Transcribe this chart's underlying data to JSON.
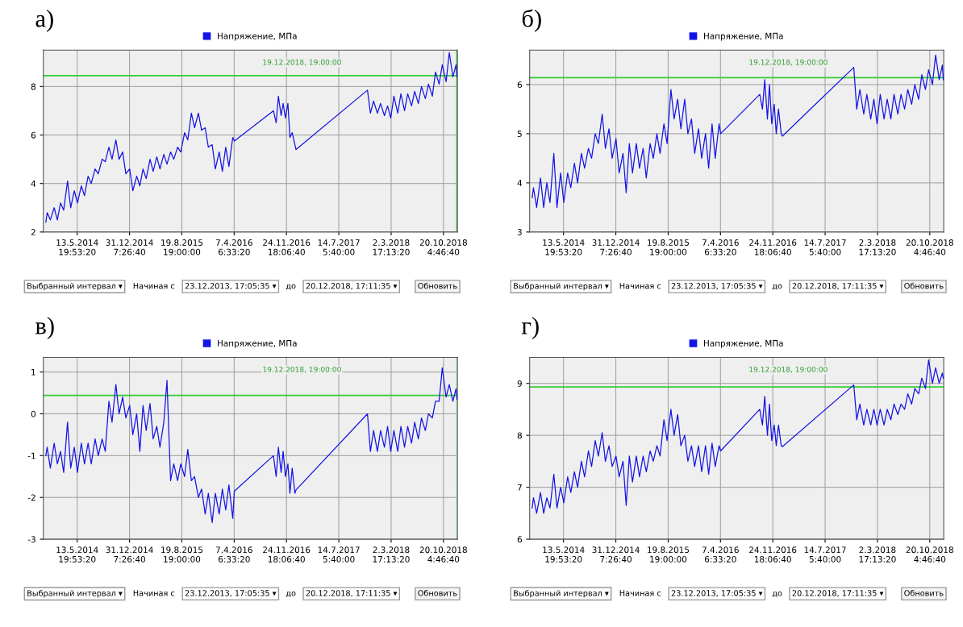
{
  "chart_data": [
    {
      "type": "line",
      "title": "а)",
      "x": [
        "2013-12-26",
        "2014-01-01",
        "2014-01-15",
        "2014-02-01",
        "2014-02-15",
        "2014-03-01",
        "2014-03-15",
        "2014-04-01",
        "2014-04-15",
        "2014-05-01",
        "2014-05-15",
        "2014-06-01",
        "2014-06-15",
        "2014-07-01",
        "2014-07-15",
        "2014-08-01",
        "2014-08-15",
        "2014-09-01",
        "2014-09-15",
        "2014-10-01",
        "2014-10-15",
        "2014-11-01",
        "2014-11-15",
        "2014-12-01",
        "2014-12-15",
        "2015-01-01",
        "2015-01-15",
        "2015-02-01",
        "2015-02-15",
        "2015-03-01",
        "2015-03-15",
        "2015-04-01",
        "2015-04-15",
        "2015-05-01",
        "2015-05-15",
        "2015-06-01",
        "2015-06-15",
        "2015-07-01",
        "2015-07-15",
        "2015-08-01",
        "2015-08-15",
        "2015-09-01",
        "2015-09-15",
        "2015-10-01",
        "2015-10-15",
        "2015-11-01",
        "2015-11-15",
        "2015-12-01",
        "2015-12-15",
        "2016-01-01",
        "2016-01-15",
        "2016-02-01",
        "2016-02-15",
        "2016-03-01",
        "2016-03-15",
        "2016-04-01",
        "2016-04-08",
        "2016-09-28",
        "2016-10-10",
        "2016-10-20",
        "2016-11-01",
        "2016-11-10",
        "2016-11-20",
        "2016-12-01",
        "2016-12-10",
        "2016-12-20",
        "2017-01-01",
        "2017-01-06",
        "2017-11-18",
        "2017-12-01",
        "2017-12-15",
        "2018-01-01",
        "2018-01-15",
        "2018-02-01",
        "2018-02-15",
        "2018-03-01",
        "2018-03-15",
        "2018-04-01",
        "2018-04-15",
        "2018-05-01",
        "2018-05-15",
        "2018-06-01",
        "2018-06-15",
        "2018-07-01",
        "2018-07-15",
        "2018-08-01",
        "2018-08-15",
        "2018-09-01",
        "2018-09-15",
        "2018-10-01",
        "2018-10-15",
        "2018-11-01",
        "2018-11-15",
        "2018-12-01",
        "2018-12-15",
        "2018-12-19"
      ],
      "series": [
        {
          "name": "Напряжение, МПа",
          "color": "#1414e6",
          "values": [
            2.4,
            2.8,
            2.5,
            3.0,
            2.5,
            3.2,
            2.9,
            4.1,
            3.0,
            3.7,
            3.2,
            3.9,
            3.5,
            4.3,
            4.0,
            4.6,
            4.4,
            5.0,
            4.9,
            5.5,
            5.0,
            5.8,
            5.0,
            5.3,
            4.4,
            4.6,
            3.7,
            4.3,
            3.9,
            4.6,
            4.2,
            5.0,
            4.5,
            5.1,
            4.6,
            5.2,
            4.8,
            5.3,
            5.0,
            5.5,
            5.3,
            6.1,
            5.8,
            6.9,
            6.3,
            6.9,
            6.2,
            6.3,
            5.5,
            5.6,
            4.6,
            5.3,
            4.5,
            5.5,
            4.7,
            5.9,
            5.75,
            7.0,
            6.5,
            7.6,
            6.8,
            7.3,
            6.7,
            7.3,
            5.9,
            6.1,
            5.6,
            5.4,
            7.85,
            6.9,
            7.4,
            6.9,
            7.3,
            6.8,
            7.2,
            6.7,
            7.6,
            6.9,
            7.7,
            7.0,
            7.7,
            7.2,
            7.8,
            7.3,
            8.0,
            7.5,
            8.1,
            7.6,
            8.6,
            8.1,
            8.9,
            8.2,
            9.4,
            8.4,
            8.9,
            8.4
          ]
        }
      ],
      "xlim": [
        "2013-12-15",
        "2018-12-21"
      ],
      "ylim": [
        2,
        9.5
      ],
      "yticks": [
        2,
        4,
        6,
        8
      ],
      "xticks": [
        {
          "value": "2014-05-13T19:53:20",
          "label": "13.5.2014\n19:53:20"
        },
        {
          "value": "2014-12-31T07:26:40",
          "label": "31.12.2014\n7:26:40"
        },
        {
          "value": "2015-08-19T19:00:00",
          "label": "19.8.2015\n19:00:00"
        },
        {
          "value": "2016-04-07T06:33:20",
          "label": "7.4.2016\n6:33:20"
        },
        {
          "value": "2016-11-24T18:06:40",
          "label": "24.11.2016\n18:06:40"
        },
        {
          "value": "2017-07-14T05:40:00",
          "label": "14.7.2017\n5:40:00"
        },
        {
          "value": "2018-03-02T17:13:20",
          "label": "2.3.2018\n17:13:20"
        },
        {
          "value": "2018-10-20T04:46:40",
          "label": "20.10.2018\n4:46:40"
        }
      ],
      "ref_lines": [
        {
          "axis": "y",
          "value": 8.45,
          "color": "#33cc33"
        },
        {
          "axis": "x",
          "value": "2018-12-19",
          "color": "#33cc33"
        }
      ],
      "annotations": [
        "19.12.2018, 19:00:00",
        "Выбранный интервал ▾",
        "Начиная с",
        "23.12.2013, 17:05:35 ▾",
        "до",
        "20.12.2018, 17:11:35 ▾",
        "Обновить"
      ],
      "grid": true,
      "legend": "top",
      "line_style": "solid",
      "marker": "none"
    },
    {
      "type": "line",
      "title": "б)",
      "x": [
        "2013-12-26",
        "2014-01-01",
        "2014-01-15",
        "2014-02-01",
        "2014-02-15",
        "2014-03-01",
        "2014-03-15",
        "2014-04-01",
        "2014-04-15",
        "2014-05-01",
        "2014-05-15",
        "2014-06-01",
        "2014-06-15",
        "2014-07-01",
        "2014-07-15",
        "2014-08-01",
        "2014-08-15",
        "2014-09-01",
        "2014-09-15",
        "2014-10-01",
        "2014-10-15",
        "2014-11-01",
        "2014-11-15",
        "2014-12-01",
        "2014-12-15",
        "2015-01-01",
        "2015-01-15",
        "2015-02-01",
        "2015-02-15",
        "2015-03-01",
        "2015-03-15",
        "2015-04-01",
        "2015-04-15",
        "2015-05-01",
        "2015-05-15",
        "2015-06-01",
        "2015-06-15",
        "2015-07-01",
        "2015-07-15",
        "2015-08-01",
        "2015-08-15",
        "2015-09-01",
        "2015-09-15",
        "2015-10-01",
        "2015-10-15",
        "2015-11-01",
        "2015-11-15",
        "2015-12-01",
        "2015-12-15",
        "2016-01-01",
        "2016-01-15",
        "2016-02-01",
        "2016-02-15",
        "2016-03-01",
        "2016-03-15",
        "2016-04-01",
        "2016-04-08",
        "2016-09-28",
        "2016-10-10",
        "2016-10-20",
        "2016-11-01",
        "2016-11-10",
        "2016-11-20",
        "2016-12-01",
        "2016-12-10",
        "2016-12-20",
        "2017-01-01",
        "2017-01-06",
        "2017-11-18",
        "2017-12-01",
        "2017-12-15",
        "2018-01-01",
        "2018-01-15",
        "2018-02-01",
        "2018-02-15",
        "2018-03-01",
        "2018-03-15",
        "2018-04-01",
        "2018-04-15",
        "2018-05-01",
        "2018-05-15",
        "2018-06-01",
        "2018-06-15",
        "2018-07-01",
        "2018-07-15",
        "2018-08-01",
        "2018-08-15",
        "2018-09-01",
        "2018-09-15",
        "2018-10-01",
        "2018-10-15",
        "2018-11-01",
        "2018-11-15",
        "2018-12-01",
        "2018-12-15",
        "2018-12-19"
      ],
      "series": [
        {
          "name": "Напряжение, МПа",
          "color": "#1414e6",
          "values": [
            3.7,
            3.9,
            3.5,
            4.1,
            3.5,
            4.0,
            3.6,
            4.6,
            3.5,
            4.2,
            3.6,
            4.2,
            3.9,
            4.4,
            4.0,
            4.6,
            4.3,
            4.7,
            4.5,
            5.0,
            4.8,
            5.4,
            4.7,
            5.1,
            4.5,
            4.9,
            4.2,
            4.6,
            3.8,
            4.8,
            4.2,
            4.8,
            4.3,
            4.7,
            4.1,
            4.8,
            4.5,
            5.0,
            4.6,
            5.2,
            4.8,
            5.9,
            5.3,
            5.7,
            5.1,
            5.7,
            5.0,
            5.3,
            4.6,
            5.1,
            4.5,
            5.0,
            4.3,
            5.2,
            4.5,
            5.2,
            5.0,
            5.8,
            5.5,
            6.1,
            5.3,
            6.0,
            5.2,
            5.6,
            5.0,
            5.5,
            5.0,
            4.95,
            6.35,
            5.5,
            5.9,
            5.4,
            5.8,
            5.3,
            5.7,
            5.2,
            5.8,
            5.3,
            5.7,
            5.3,
            5.8,
            5.4,
            5.8,
            5.5,
            5.9,
            5.6,
            6.0,
            5.7,
            6.2,
            5.9,
            6.3,
            6.0,
            6.6,
            6.1,
            6.4,
            6.1
          ]
        }
      ],
      "xlim": [
        "2013-12-15",
        "2018-12-21"
      ],
      "ylim": [
        3,
        6.7
      ],
      "yticks": [
        3,
        4,
        5,
        6
      ],
      "xticks": [
        {
          "value": "2014-05-13T19:53:20",
          "label": "13.5.2014\n19:53:20"
        },
        {
          "value": "2014-12-31T07:26:40",
          "label": "31.12.2014\n7:26:40"
        },
        {
          "value": "2015-08-19T19:00:00",
          "label": "19.8.2015\n19:00:00"
        },
        {
          "value": "2016-04-07T06:33:20",
          "label": "7.4.2016\n6:33:20"
        },
        {
          "value": "2016-11-24T18:06:40",
          "label": "24.11.2016\n18:06:40"
        },
        {
          "value": "2017-07-14T05:40:00",
          "label": "14.7.2017\n5:40:00"
        },
        {
          "value": "2018-03-02T17:13:20",
          "label": "2.3.2018\n17:13:20"
        },
        {
          "value": "2018-10-20T04:46:40",
          "label": "20.10.2018\n4:46:40"
        }
      ],
      "ref_lines": [
        {
          "axis": "y",
          "value": 6.14,
          "color": "#33cc33"
        }
      ],
      "annotations": [
        "19.12.2018, 19:00:00",
        "Выбранный интервал ▾",
        "Начиная с",
        "23.12.2013, 17:05:35 ▾",
        "до",
        "20.12.2018, 17:11:35 ▾",
        "Обновить"
      ],
      "grid": true,
      "legend": "top",
      "line_style": "solid",
      "marker": "none"
    },
    {
      "type": "line",
      "title": "в)",
      "x": [
        "2013-12-26",
        "2014-01-01",
        "2014-01-15",
        "2014-02-01",
        "2014-02-15",
        "2014-03-01",
        "2014-03-15",
        "2014-04-01",
        "2014-04-15",
        "2014-05-01",
        "2014-05-15",
        "2014-06-01",
        "2014-06-15",
        "2014-07-01",
        "2014-07-15",
        "2014-08-01",
        "2014-08-15",
        "2014-09-01",
        "2014-09-15",
        "2014-10-01",
        "2014-10-15",
        "2014-11-01",
        "2014-11-15",
        "2014-12-01",
        "2014-12-15",
        "2015-01-01",
        "2015-01-15",
        "2015-02-01",
        "2015-02-15",
        "2015-03-01",
        "2015-03-15",
        "2015-04-01",
        "2015-04-15",
        "2015-05-01",
        "2015-05-15",
        "2015-06-01",
        "2015-06-15",
        "2015-07-01",
        "2015-07-15",
        "2015-08-01",
        "2015-08-15",
        "2015-09-01",
        "2015-09-15",
        "2015-10-01",
        "2015-10-15",
        "2015-11-01",
        "2015-11-15",
        "2015-12-01",
        "2015-12-15",
        "2016-01-01",
        "2016-01-15",
        "2016-02-01",
        "2016-02-15",
        "2016-03-01",
        "2016-03-15",
        "2016-04-01",
        "2016-04-08",
        "2016-09-28",
        "2016-10-10",
        "2016-10-20",
        "2016-11-01",
        "2016-11-10",
        "2016-11-20",
        "2016-12-01",
        "2016-12-10",
        "2016-12-20",
        "2017-01-01",
        "2017-01-06",
        "2017-11-18",
        "2017-12-01",
        "2017-12-15",
        "2018-01-01",
        "2018-01-15",
        "2018-02-01",
        "2018-02-15",
        "2018-03-01",
        "2018-03-15",
        "2018-04-01",
        "2018-04-15",
        "2018-05-01",
        "2018-05-15",
        "2018-06-01",
        "2018-06-15",
        "2018-07-01",
        "2018-07-15",
        "2018-08-01",
        "2018-08-15",
        "2018-09-01",
        "2018-09-15",
        "2018-10-01",
        "2018-10-15",
        "2018-11-01",
        "2018-11-15",
        "2018-12-01",
        "2018-12-15",
        "2018-12-19"
      ],
      "series": [
        {
          "name": "Напряжение, МПа",
          "color": "#1414e6",
          "values": [
            -1.0,
            -0.8,
            -1.3,
            -0.7,
            -1.2,
            -0.9,
            -1.4,
            -0.2,
            -1.3,
            -0.8,
            -1.4,
            -0.7,
            -1.2,
            -0.7,
            -1.2,
            -0.6,
            -1.0,
            -0.6,
            -0.9,
            0.3,
            -0.2,
            0.7,
            0.0,
            0.4,
            -0.1,
            0.2,
            -0.5,
            0.0,
            -0.9,
            0.2,
            -0.4,
            0.25,
            -0.6,
            -0.3,
            -0.8,
            -0.2,
            0.8,
            -1.6,
            -1.2,
            -1.6,
            -1.2,
            -1.5,
            -0.85,
            -1.6,
            -1.5,
            -2.0,
            -1.8,
            -2.4,
            -1.9,
            -2.6,
            -1.9,
            -2.4,
            -1.8,
            -2.3,
            -1.7,
            -2.5,
            -1.85,
            -1.0,
            -1.5,
            -0.8,
            -1.4,
            -0.9,
            -1.5,
            -1.2,
            -1.9,
            -1.3,
            -1.9,
            -1.82,
            0.0,
            -0.9,
            -0.4,
            -0.9,
            -0.4,
            -0.8,
            -0.3,
            -0.9,
            -0.4,
            -0.9,
            -0.3,
            -0.8,
            -0.3,
            -0.7,
            -0.2,
            -0.6,
            -0.1,
            -0.4,
            0.0,
            -0.1,
            0.3,
            0.3,
            1.1,
            0.4,
            0.7,
            0.3,
            0.6,
            0.35
          ]
        }
      ],
      "xlim": [
        "2013-12-15",
        "2018-12-21"
      ],
      "ylim": [
        -3,
        1.35
      ],
      "yticks": [
        {
          "value": -3,
          "label": "-3"
        },
        {
          "value": -2,
          "label": "-2"
        },
        {
          "value": -1,
          "label": "-1"
        },
        0,
        1
      ],
      "xticks": [
        {
          "value": "2014-05-13T19:53:20",
          "label": "13.5.2014\n19:53:20"
        },
        {
          "value": "2014-12-31T07:26:40",
          "label": "31.12.2014\n7:26:40"
        },
        {
          "value": "2015-08-19T19:00:00",
          "label": "19.8.2015\n19:00:00"
        },
        {
          "value": "2016-04-07T06:33:20",
          "label": "7.4.2016\n6:33:20"
        },
        {
          "value": "2016-11-24T18:06:40",
          "label": "24.11.2016\n18:06:40"
        },
        {
          "value": "2017-07-14T05:40:00",
          "label": "14.7.2017\n5:40:00"
        },
        {
          "value": "2018-03-02T17:13:20",
          "label": "2.3.2018\n17:13:20"
        },
        {
          "value": "2018-10-20T04:46:40",
          "label": "20.10.2018\n4:46:40"
        }
      ],
      "ref_lines": [
        {
          "axis": "y",
          "value": 0.44,
          "color": "#33cc33"
        },
        {
          "axis": "x",
          "value": "2018-12-19",
          "color": "#a8e0a8"
        }
      ],
      "annotations": [
        "19.12.2018, 19:00:00",
        "Выбранный интервал ▾",
        "Начиная с",
        "23.12.2013, 17:05:35 ▾",
        "до",
        "20.12.2018, 17:11:35 ▾",
        "Обновить"
      ],
      "grid": true,
      "legend": "top",
      "line_style": "solid",
      "marker": "none"
    },
    {
      "type": "line",
      "title": "г)",
      "x": [
        "2013-12-26",
        "2014-01-01",
        "2014-01-15",
        "2014-02-01",
        "2014-02-15",
        "2014-03-01",
        "2014-03-15",
        "2014-04-01",
        "2014-04-15",
        "2014-05-01",
        "2014-05-15",
        "2014-06-01",
        "2014-06-15",
        "2014-07-01",
        "2014-07-15",
        "2014-08-01",
        "2014-08-15",
        "2014-09-01",
        "2014-09-15",
        "2014-10-01",
        "2014-10-15",
        "2014-11-01",
        "2014-11-15",
        "2014-12-01",
        "2014-12-15",
        "2015-01-01",
        "2015-01-15",
        "2015-02-01",
        "2015-02-15",
        "2015-03-01",
        "2015-03-15",
        "2015-04-01",
        "2015-04-15",
        "2015-05-01",
        "2015-05-15",
        "2015-06-01",
        "2015-06-15",
        "2015-07-01",
        "2015-07-15",
        "2015-08-01",
        "2015-08-15",
        "2015-09-01",
        "2015-09-15",
        "2015-10-01",
        "2015-10-15",
        "2015-11-01",
        "2015-11-15",
        "2015-12-01",
        "2015-12-15",
        "2016-01-01",
        "2016-01-15",
        "2016-02-01",
        "2016-02-15",
        "2016-03-01",
        "2016-03-15",
        "2016-04-01",
        "2016-04-08",
        "2016-09-28",
        "2016-10-10",
        "2016-10-20",
        "2016-11-01",
        "2016-11-10",
        "2016-11-20",
        "2016-12-01",
        "2016-12-10",
        "2016-12-20",
        "2017-01-01",
        "2017-01-06",
        "2017-11-18",
        "2017-12-01",
        "2017-12-15",
        "2018-01-01",
        "2018-01-15",
        "2018-02-01",
        "2018-02-15",
        "2018-03-01",
        "2018-03-15",
        "2018-04-01",
        "2018-04-15",
        "2018-05-01",
        "2018-05-15",
        "2018-06-01",
        "2018-06-15",
        "2018-07-01",
        "2018-07-15",
        "2018-08-01",
        "2018-08-15",
        "2018-09-01",
        "2018-09-15",
        "2018-10-01",
        "2018-10-15",
        "2018-11-01",
        "2018-11-15",
        "2018-12-01",
        "2018-12-15",
        "2018-12-19"
      ],
      "series": [
        {
          "name": "Напряжение, МПа",
          "color": "#1414e6",
          "values": [
            6.6,
            6.8,
            6.5,
            6.9,
            6.5,
            6.8,
            6.6,
            7.25,
            6.6,
            7.0,
            6.7,
            7.2,
            6.9,
            7.3,
            7.0,
            7.5,
            7.2,
            7.7,
            7.4,
            7.9,
            7.6,
            8.05,
            7.5,
            7.8,
            7.4,
            7.6,
            7.2,
            7.5,
            6.65,
            7.6,
            7.1,
            7.6,
            7.2,
            7.6,
            7.3,
            7.7,
            7.5,
            7.8,
            7.6,
            8.3,
            7.9,
            8.5,
            8.0,
            8.4,
            7.8,
            8.0,
            7.5,
            7.8,
            7.4,
            7.8,
            7.3,
            7.8,
            7.25,
            7.85,
            7.4,
            7.8,
            7.7,
            8.5,
            8.2,
            8.75,
            8.0,
            8.6,
            7.9,
            8.2,
            7.8,
            8.2,
            7.8,
            7.78,
            8.97,
            8.3,
            8.6,
            8.2,
            8.5,
            8.2,
            8.5,
            8.2,
            8.5,
            8.2,
            8.5,
            8.3,
            8.6,
            8.4,
            8.6,
            8.5,
            8.8,
            8.6,
            8.9,
            8.8,
            9.1,
            8.9,
            9.45,
            9.0,
            9.3,
            9.0,
            9.2,
            9.1
          ]
        }
      ],
      "xlim": [
        "2013-12-15",
        "2018-12-21"
      ],
      "ylim": [
        6,
        9.5
      ],
      "yticks": [
        6,
        7,
        8,
        9
      ],
      "xticks": [
        {
          "value": "2014-05-13T19:53:20",
          "label": "13.5.2014\n19:53:20"
        },
        {
          "value": "2014-12-31T07:26:40",
          "label": "31.12.2014\n7:26:40"
        },
        {
          "value": "2015-08-19T19:00:00",
          "label": "19.8.2015\n19:00:00"
        },
        {
          "value": "2016-04-07T06:33:20",
          "label": "7.4.2016\n6:33:20"
        },
        {
          "value": "2016-11-24T18:06:40",
          "label": "24.11.2016\n18:06:40"
        },
        {
          "value": "2017-07-14T05:40:00",
          "label": "14.7.2017\n5:40:00"
        },
        {
          "value": "2018-03-02T17:13:20",
          "label": "2.3.2018\n17:13:20"
        },
        {
          "value": "2018-10-20T04:46:40",
          "label": "20.10.2018\n4:46:40"
        }
      ],
      "ref_lines": [
        {
          "axis": "y",
          "value": 8.93,
          "color": "#33cc33"
        }
      ],
      "annotations": [
        "19.12.2018, 19:00:00",
        "Выбранный интервал ▾",
        "Начиная с",
        "23.12.2013, 17:05:35 ▾",
        "до",
        "20.12.2018, 17:11:35 ▾",
        "Обновить"
      ],
      "grid": true,
      "legend": "top",
      "line_style": "solid",
      "marker": "none"
    }
  ]
}
